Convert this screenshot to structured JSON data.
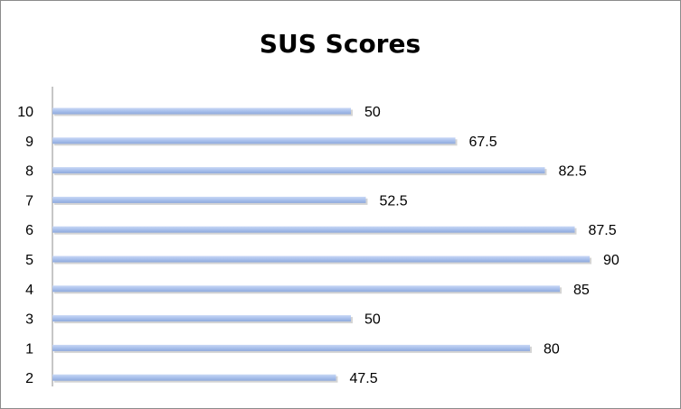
{
  "chart_data": {
    "type": "bar",
    "orientation": "horizontal",
    "title": "SUS Scores",
    "xlabel": "",
    "ylabel": "",
    "xlim": [
      0,
      100
    ],
    "grid": false,
    "legend": "none",
    "categories": [
      "10",
      "9",
      "8",
      "7",
      "6",
      "5",
      "4",
      "3",
      "1",
      "2"
    ],
    "values": [
      50,
      67.5,
      82.5,
      52.5,
      87.5,
      90,
      85,
      50,
      80,
      47.5
    ],
    "data_labels": [
      "50",
      "67.5",
      "82.5",
      "52.5",
      "87.5",
      "90",
      "85",
      "50",
      "80",
      "47.5"
    ],
    "bar_color": "#a9c0ec",
    "bar_shadow_color": "#b8b8b8"
  }
}
